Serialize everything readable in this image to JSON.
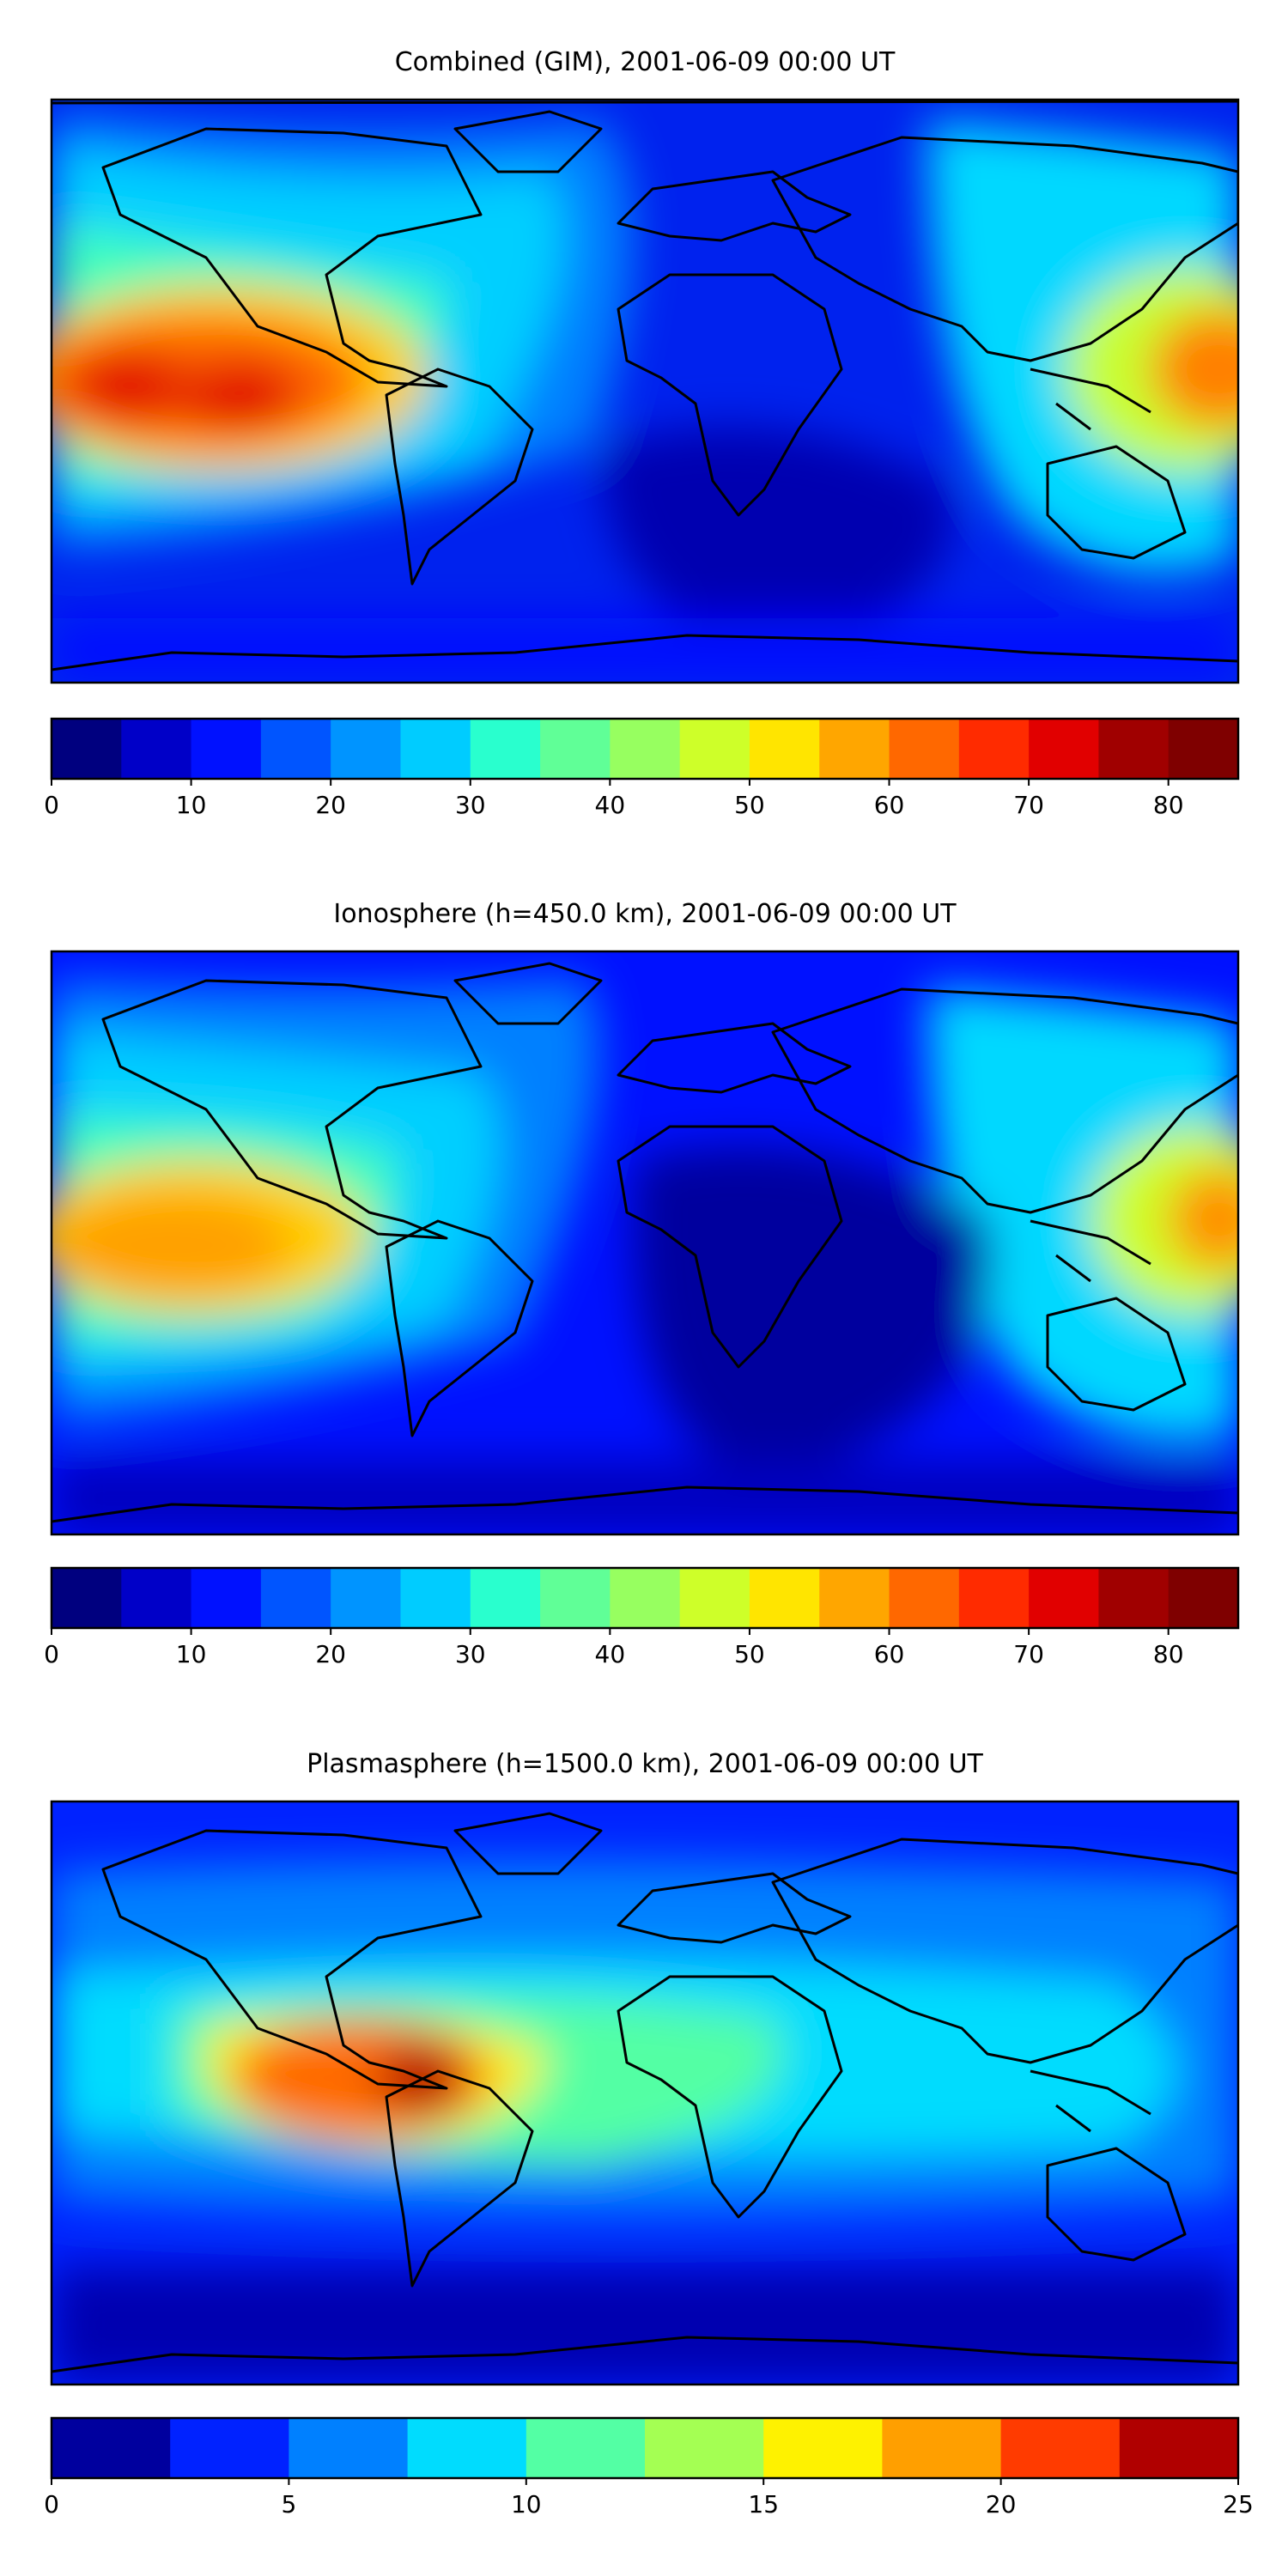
{
  "panels": [
    {
      "title": "Combined (GIM), 2001-06-09 00:00 UT",
      "map": "world-map",
      "colorbar": {
        "ticks": [
          "0",
          "10",
          "20",
          "30",
          "40",
          "50",
          "60",
          "70",
          "80"
        ],
        "tick_values": [
          0,
          10,
          20,
          30,
          40,
          50,
          60,
          70,
          80
        ],
        "min": 0,
        "max": 85,
        "step": 5,
        "colors": [
          "#00007f",
          "#0000c8",
          "#0011ff",
          "#0055ff",
          "#0094ff",
          "#00ccff",
          "#29ffce",
          "#60ff97",
          "#97ff60",
          "#ceff29",
          "#ffe500",
          "#ffa600",
          "#ff6800",
          "#ff2b00",
          "#e10000",
          "#a00000",
          "#7f0000"
        ]
      }
    },
    {
      "title": "Ionosphere  (h=450.0 km), 2001-06-09 00:00 UT",
      "map": "world-map",
      "colorbar": {
        "ticks": [
          "0",
          "10",
          "20",
          "30",
          "40",
          "50",
          "60",
          "70",
          "80"
        ],
        "tick_values": [
          0,
          10,
          20,
          30,
          40,
          50,
          60,
          70,
          80
        ],
        "min": 0,
        "max": 85,
        "step": 5,
        "colors": [
          "#00007f",
          "#0000c8",
          "#0011ff",
          "#0055ff",
          "#0094ff",
          "#00ccff",
          "#29ffce",
          "#60ff97",
          "#97ff60",
          "#ceff29",
          "#ffe500",
          "#ffa600",
          "#ff6800",
          "#ff2b00",
          "#e10000",
          "#a00000",
          "#7f0000"
        ]
      }
    },
    {
      "title": "Plasmasphere (h=1500.0 km), 2001-06-09 00:00 UT",
      "map": "world-map",
      "colorbar": {
        "ticks": [
          "0",
          "5",
          "10",
          "15",
          "20",
          "25"
        ],
        "tick_values": [
          0,
          5,
          10,
          15,
          20,
          25
        ],
        "min": 0,
        "max": 25,
        "step": 2.5,
        "colors": [
          "#00009e",
          "#0022ff",
          "#0080ff",
          "#00dcfe",
          "#53ffa4",
          "#a4ff53",
          "#fef200",
          "#ff9f00",
          "#ff3b00",
          "#b00000"
        ]
      }
    }
  ]
}
